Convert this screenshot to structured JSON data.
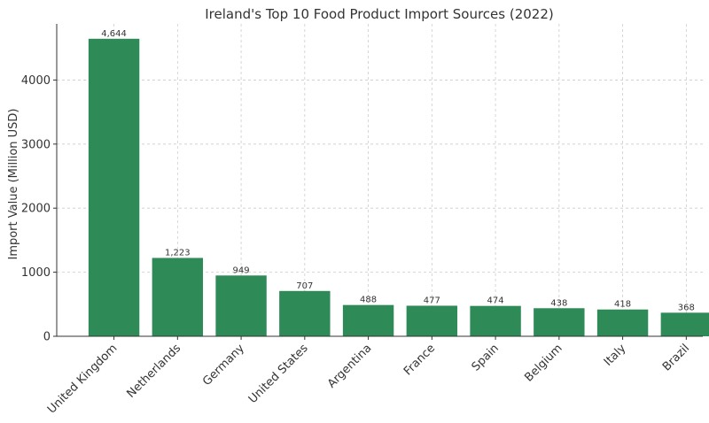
{
  "chart_data": {
    "type": "bar",
    "title": "Ireland's Top 10 Food Product Import Sources (2022)",
    "xlabel": "",
    "ylabel": "Import Value (Million USD)",
    "categories": [
      "United Kingdom",
      "Netherlands",
      "Germany",
      "United States",
      "Argentina",
      "France",
      "Spain",
      "Belgium",
      "Italy",
      "Brazil"
    ],
    "values": [
      4644,
      1223,
      949,
      707,
      488,
      477,
      474,
      438,
      418,
      368
    ],
    "value_labels": [
      "4,644",
      "1,223",
      "949",
      "707",
      "488",
      "477",
      "474",
      "438",
      "418",
      "368"
    ],
    "ylim": [
      0,
      4876
    ],
    "yticks": [
      0,
      1000,
      2000,
      3000,
      4000
    ],
    "grid": true,
    "bar_color": "#2e8b57"
  }
}
